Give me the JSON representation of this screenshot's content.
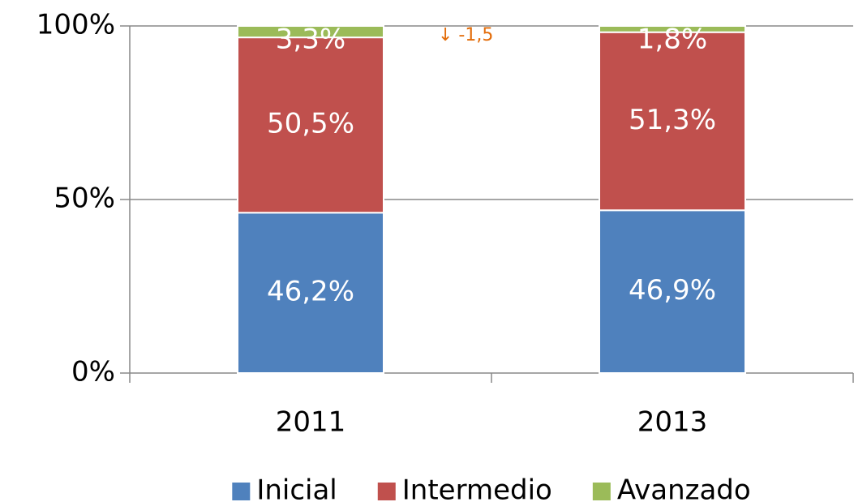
{
  "chart_data": {
    "type": "stacked_bar",
    "categories": [
      "2011",
      "2013"
    ],
    "series": [
      {
        "name": "Inicial",
        "color": "#4f81bd",
        "values": [
          46.2,
          46.9
        ],
        "value_labels": [
          "46,2%",
          "46,9%"
        ]
      },
      {
        "name": "Intermedio",
        "color": "#c0504d",
        "values": [
          50.5,
          51.3
        ],
        "value_labels": [
          "50,5%",
          "51,3%"
        ]
      },
      {
        "name": "Avanzado",
        "color": "#9bbb59",
        "values": [
          3.3,
          1.8
        ],
        "value_labels": [
          "3,3%",
          "1,8%"
        ]
      }
    ],
    "ylim": [
      0,
      100
    ],
    "yticks": [
      {
        "value": 0,
        "label": "0%"
      },
      {
        "value": 50,
        "label": "50%"
      },
      {
        "value": 100,
        "label": "100%"
      }
    ],
    "grid": true,
    "legend": "bottom",
    "annotations": [
      {
        "text": "↓ -1,5",
        "color": "#e36c09"
      }
    ]
  }
}
